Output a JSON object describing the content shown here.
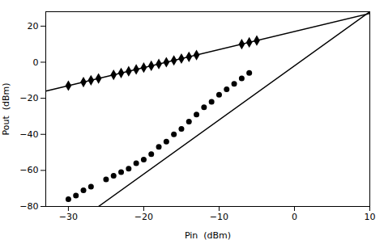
{
  "chart_data": {
    "type": "scatter",
    "xlabel": "Pin  (dBm)",
    "ylabel": "Pout  (dBm)",
    "xlim": [
      -33,
      10
    ],
    "ylim": [
      -80,
      28
    ],
    "xticks": [
      -30,
      -20,
      -10,
      0,
      10
    ],
    "yticks": [
      -80,
      -60,
      -40,
      -20,
      0,
      20
    ],
    "grid": false,
    "series": [
      {
        "type": "line",
        "color": "black",
        "line_style": "solid",
        "x": [
          -33,
          10
        ],
        "values": [
          -16,
          27
        ]
      },
      {
        "type": "line",
        "color": "black",
        "line_style": "solid",
        "x": [
          -26,
          10
        ],
        "values": [
          -80,
          28
        ]
      },
      {
        "type": "scatter",
        "color": "black",
        "marker": "diamond",
        "x": [
          -30,
          -28,
          -27,
          -26,
          -24,
          -23,
          -22,
          -21,
          -20,
          -19,
          -18,
          -17,
          -16,
          -15,
          -14,
          -13,
          -7,
          -6,
          -5
        ],
        "values": [
          -13,
          -11,
          -10,
          -9,
          -7,
          -6,
          -5,
          -4,
          -3,
          -2,
          -1,
          0,
          1,
          2,
          3,
          4,
          10,
          11,
          12
        ]
      },
      {
        "type": "scatter",
        "color": "black",
        "marker": "circle",
        "x": [
          -30,
          -29,
          -28,
          -27,
          -25,
          -24,
          -23,
          -22,
          -21,
          -20,
          -19,
          -18,
          -17,
          -16,
          -15,
          -14,
          -13,
          -12,
          -11,
          -10,
          -9,
          -8,
          -7,
          -6
        ],
        "values": [
          -76,
          -74,
          -71,
          -69,
          -65,
          -63,
          -61,
          -59,
          -56,
          -54,
          -51,
          -47,
          -44,
          -40,
          -37,
          -33,
          -29,
          -25,
          -22,
          -18,
          -15,
          -12,
          -9,
          -6
        ]
      }
    ]
  }
}
